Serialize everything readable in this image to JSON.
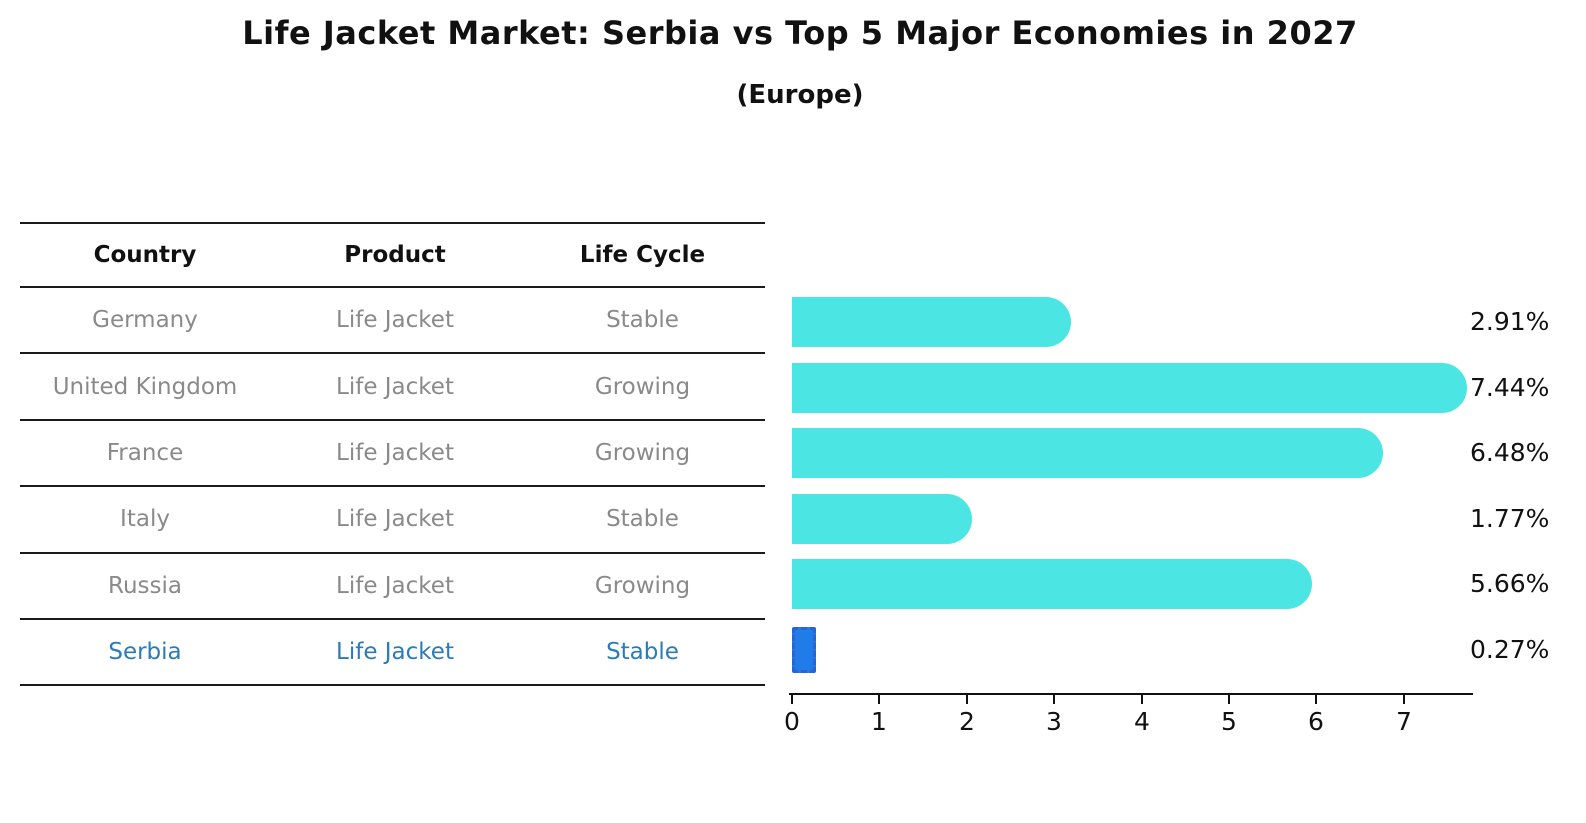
{
  "title": "Life Jacket Market: Serbia vs Top 5 Major Economies in 2027",
  "subtitle": "(Europe)",
  "table": {
    "headers": [
      "Country",
      "Product",
      "Life Cycle"
    ],
    "rows": [
      {
        "country": "Germany",
        "product": "Life Jacket",
        "life_cycle": "Stable",
        "highlight": false
      },
      {
        "country": "United Kingdom",
        "product": "Life Jacket",
        "life_cycle": "Growing",
        "highlight": false
      },
      {
        "country": "France",
        "product": "Life Jacket",
        "life_cycle": "Growing",
        "highlight": false
      },
      {
        "country": "Italy",
        "product": "Life Jacket",
        "life_cycle": "Stable",
        "highlight": false
      },
      {
        "country": "Russia",
        "product": "Life Jacket",
        "life_cycle": "Growing",
        "highlight": false
      },
      {
        "country": "Serbia",
        "product": "Life Jacket",
        "life_cycle": "Stable",
        "highlight": true
      }
    ]
  },
  "chart_data": {
    "type": "bar",
    "orientation": "horizontal",
    "title": "Life Jacket Market: Serbia vs Top 5 Major Economies in 2027",
    "subtitle": "(Europe)",
    "categories": [
      "Germany",
      "United Kingdom",
      "France",
      "Italy",
      "Russia",
      "Serbia"
    ],
    "values": [
      2.91,
      7.44,
      6.48,
      1.77,
      5.66,
      0.27
    ],
    "value_labels": [
      "2.91%",
      "7.44%",
      "6.48%",
      "1.77%",
      "5.66%",
      "0.27%"
    ],
    "xlabel": "",
    "ylabel": "",
    "xlim": [
      0,
      7.8
    ],
    "xticks": [
      0,
      1,
      2,
      3,
      4,
      5,
      6,
      7
    ],
    "grid": false,
    "legend": false,
    "bar_color": "#4be6e3",
    "highlight_index": 5,
    "highlight_bar_color": "#1f7ce8",
    "highlight_bar_border_color": "#2a63d4",
    "highlight_text_color": "#2c7bb8"
  }
}
